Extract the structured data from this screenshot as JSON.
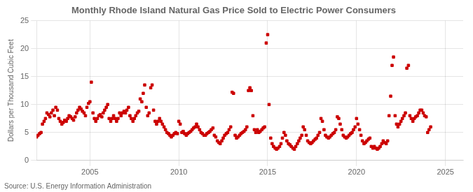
{
  "chart_data": {
    "type": "scatter",
    "title": "Monthly Rhode Island Natural Gas Price Sold to Electric Power Consumers",
    "ylabel": "Dollars per Thousand Cubic Feet",
    "annotations": [
      "Source: U.S. Energy Information Administration"
    ],
    "color": "#CC0000",
    "marker": "square",
    "grid": true,
    "xlim": [
      2002,
      2026
    ],
    "ylim": [
      0,
      25
    ],
    "xticks": [
      2005,
      2010,
      2015,
      2020,
      2025
    ],
    "yticks": [
      0,
      5,
      10,
      15,
      20,
      25
    ],
    "x": [
      2002.0,
      2002.08,
      2002.17,
      2002.25,
      2002.33,
      2002.42,
      2002.5,
      2002.58,
      2002.67,
      2002.75,
      2002.83,
      2002.92,
      2003.0,
      2003.08,
      2003.17,
      2003.25,
      2003.33,
      2003.42,
      2003.5,
      2003.58,
      2003.67,
      2003.75,
      2003.83,
      2003.92,
      2004.0,
      2004.08,
      2004.17,
      2004.25,
      2004.33,
      2004.42,
      2004.5,
      2004.58,
      2004.67,
      2004.75,
      2004.83,
      2004.92,
      2005.0,
      2005.08,
      2005.17,
      2005.25,
      2005.33,
      2005.42,
      2005.5,
      2005.58,
      2005.67,
      2005.75,
      2005.83,
      2005.92,
      2006.0,
      2006.08,
      2006.17,
      2006.25,
      2006.33,
      2006.42,
      2006.5,
      2006.58,
      2006.67,
      2006.75,
      2006.83,
      2006.92,
      2007.0,
      2007.08,
      2007.17,
      2007.25,
      2007.33,
      2007.42,
      2007.5,
      2007.58,
      2007.67,
      2007.75,
      2007.83,
      2007.92,
      2008.0,
      2008.08,
      2008.17,
      2008.25,
      2008.33,
      2008.42,
      2008.5,
      2008.58,
      2008.67,
      2008.75,
      2008.83,
      2008.92,
      2009.0,
      2009.08,
      2009.17,
      2009.25,
      2009.33,
      2009.42,
      2009.5,
      2009.58,
      2009.67,
      2009.75,
      2009.83,
      2009.92,
      2010.0,
      2010.08,
      2010.17,
      2010.25,
      2010.33,
      2010.42,
      2010.5,
      2010.58,
      2010.67,
      2010.75,
      2010.83,
      2010.92,
      2011.0,
      2011.08,
      2011.17,
      2011.25,
      2011.33,
      2011.42,
      2011.5,
      2011.58,
      2011.67,
      2011.75,
      2011.83,
      2011.92,
      2012.0,
      2012.08,
      2012.17,
      2012.25,
      2012.33,
      2012.42,
      2012.5,
      2012.58,
      2012.67,
      2012.75,
      2012.83,
      2012.92,
      2013.0,
      2013.08,
      2013.17,
      2013.25,
      2013.33,
      2013.42,
      2013.5,
      2013.58,
      2013.67,
      2013.75,
      2013.83,
      2013.92,
      2014.0,
      2014.08,
      2014.17,
      2014.25,
      2014.33,
      2014.42,
      2014.5,
      2014.58,
      2014.67,
      2014.75,
      2014.83,
      2014.92,
      2015.0,
      2015.08,
      2015.17,
      2015.25,
      2015.33,
      2015.42,
      2015.5,
      2015.58,
      2015.67,
      2015.75,
      2015.83,
      2015.92,
      2016.0,
      2016.08,
      2016.17,
      2016.25,
      2016.33,
      2016.42,
      2016.5,
      2016.58,
      2016.67,
      2016.75,
      2016.83,
      2016.92,
      2017.0,
      2017.08,
      2017.17,
      2017.25,
      2017.33,
      2017.42,
      2017.5,
      2017.58,
      2017.67,
      2017.75,
      2017.83,
      2017.92,
      2018.0,
      2018.08,
      2018.17,
      2018.25,
      2018.33,
      2018.42,
      2018.5,
      2018.58,
      2018.67,
      2018.75,
      2018.83,
      2018.92,
      2019.0,
      2019.08,
      2019.17,
      2019.25,
      2019.33,
      2019.42,
      2019.5,
      2019.58,
      2019.67,
      2019.75,
      2019.83,
      2019.92,
      2020.0,
      2020.08,
      2020.17,
      2020.25,
      2020.33,
      2020.42,
      2020.5,
      2020.58,
      2020.67,
      2020.75,
      2020.83,
      2020.92,
      2021.0,
      2021.08,
      2021.17,
      2021.25,
      2021.33,
      2021.42,
      2021.5,
      2021.58,
      2021.67,
      2021.75,
      2021.83,
      2021.92,
      2022.0,
      2022.08,
      2022.17,
      2022.25,
      2022.33,
      2022.42,
      2022.5,
      2022.58,
      2022.67,
      2022.75,
      2022.83,
      2022.92,
      2023.0,
      2023.08,
      2023.17,
      2023.25,
      2023.33,
      2023.42,
      2023.5,
      2023.58,
      2023.67,
      2023.75,
      2023.83,
      2023.92,
      2024.0,
      2024.08,
      2024.17
    ],
    "values": [
      4.2,
      4.5,
      4.8,
      5.0,
      6.5,
      7.0,
      7.5,
      8.5,
      8.2,
      7.8,
      8.5,
      9.0,
      8.0,
      9.5,
      9.0,
      7.5,
      7.0,
      6.5,
      6.8,
      7.2,
      7.0,
      7.5,
      8.0,
      7.8,
      7.5,
      7.2,
      7.8,
      8.5,
      9.0,
      9.5,
      9.2,
      8.8,
      8.5,
      8.0,
      9.5,
      10.2,
      10.5,
      14.0,
      8.5,
      7.5,
      7.0,
      7.5,
      8.0,
      8.2,
      7.8,
      8.5,
      9.0,
      9.5,
      10.0,
      7.5,
      7.0,
      7.5,
      8.0,
      7.5,
      7.0,
      7.5,
      8.5,
      8.0,
      8.5,
      8.8,
      8.5,
      9.0,
      9.5,
      8.0,
      7.5,
      7.0,
      7.5,
      8.0,
      8.5,
      8.8,
      11.0,
      10.5,
      12.0,
      13.5,
      9.5,
      8.0,
      8.5,
      13.0,
      13.5,
      9.0,
      7.0,
      6.5,
      7.0,
      7.5,
      7.0,
      6.5,
      6.0,
      5.5,
      5.0,
      4.8,
      4.5,
      4.2,
      4.5,
      4.8,
      5.0,
      4.8,
      7.0,
      6.5,
      5.0,
      5.2,
      4.8,
      4.5,
      4.8,
      5.0,
      5.2,
      5.5,
      5.8,
      6.0,
      6.5,
      6.0,
      5.5,
      5.0,
      4.8,
      4.5,
      4.5,
      4.8,
      5.0,
      5.2,
      5.5,
      5.8,
      4.5,
      4.2,
      3.5,
      3.2,
      3.0,
      3.5,
      4.0,
      4.5,
      4.8,
      5.0,
      5.5,
      6.0,
      12.2,
      12.0,
      4.5,
      4.0,
      4.2,
      4.5,
      4.8,
      5.0,
      5.2,
      5.5,
      6.0,
      12.5,
      13.0,
      12.5,
      8.0,
      5.5,
      5.0,
      5.5,
      5.0,
      5.2,
      5.5,
      5.8,
      6.0,
      21.0,
      22.5,
      10.0,
      4.0,
      3.0,
      2.5,
      2.2,
      2.0,
      2.2,
      2.5,
      3.0,
      4.0,
      5.0,
      4.5,
      3.5,
      3.0,
      2.8,
      2.5,
      2.2,
      2.0,
      2.5,
      3.0,
      3.5,
      4.0,
      4.5,
      6.0,
      5.5,
      4.5,
      3.5,
      3.2,
      3.0,
      3.2,
      3.5,
      3.8,
      4.0,
      4.5,
      5.0,
      7.5,
      7.0,
      5.5,
      4.5,
      4.2,
      4.0,
      4.2,
      4.5,
      4.8,
      5.0,
      5.5,
      7.8,
      7.5,
      6.5,
      5.5,
      4.5,
      4.2,
      4.0,
      4.2,
      4.5,
      4.8,
      5.0,
      5.5,
      6.0,
      7.5,
      6.5,
      5.5,
      4.5,
      3.5,
      3.0,
      3.2,
      3.5,
      3.8,
      4.0,
      2.5,
      2.2,
      2.5,
      2.2,
      2.0,
      2.2,
      2.5,
      3.0,
      3.5,
      3.2,
      3.0,
      3.5,
      8.0,
      11.5,
      17.0,
      18.5,
      8.0,
      6.5,
      6.0,
      6.5,
      7.0,
      7.5,
      8.0,
      8.5,
      16.5,
      17.0,
      8.0,
      7.5,
      7.0,
      7.5,
      7.8,
      8.0,
      8.5,
      9.0,
      9.0,
      8.5,
      8.0,
      7.8,
      5.0,
      5.5,
      6.0
    ]
  }
}
